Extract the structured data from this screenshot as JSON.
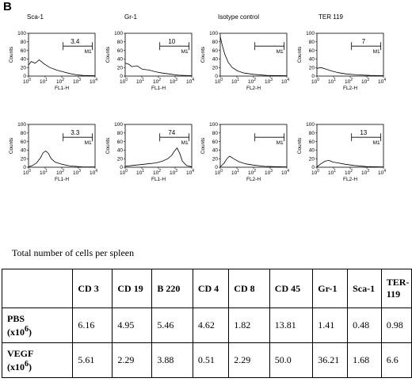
{
  "panel_label": "B",
  "histograms": {
    "columns": [
      "Sca-1",
      "Gr-1",
      "Isotype control",
      "TER 119"
    ],
    "y_label": "Counts",
    "y_ticks": [
      "0",
      "20",
      "40",
      "60",
      "80",
      "100"
    ],
    "x_tick_bases": [
      "10",
      "10",
      "10",
      "10",
      "10"
    ],
    "x_tick_exps": [
      "0",
      "1",
      "2",
      "3",
      "4"
    ],
    "marker_label": "M1",
    "panels": [
      {
        "row": 0,
        "col": 0,
        "xlabel": "FL1-H",
        "percent": "3.4"
      },
      {
        "row": 0,
        "col": 1,
        "xlabel": "FL1-H",
        "percent": "10"
      },
      {
        "row": 0,
        "col": 2,
        "xlabel": "FL2-H",
        "percent": ""
      },
      {
        "row": 0,
        "col": 3,
        "xlabel": "FL2-H",
        "percent": "7"
      },
      {
        "row": 1,
        "col": 0,
        "xlabel": "FL1-H",
        "percent": "3.3"
      },
      {
        "row": 1,
        "col": 1,
        "xlabel": "FL1-H",
        "percent": "74"
      },
      {
        "row": 1,
        "col": 2,
        "xlabel": "FL2-H",
        "percent": ""
      },
      {
        "row": 1,
        "col": 3,
        "xlabel": "FL2-H",
        "percent": "13"
      }
    ]
  },
  "table": {
    "caption": "Total number of cells per spleen",
    "headers": [
      "",
      "CD 3",
      "CD 19",
      "B 220",
      "CD 4",
      "CD 8",
      "CD 45",
      "Gr-1",
      "Sca-1",
      "TER-119"
    ],
    "rows": [
      {
        "label": "PBS",
        "unit_base": "(x10",
        "unit_exp": "6",
        "unit_end": ")",
        "values": [
          "6.16",
          "4.95",
          "5.46",
          "4.62",
          "1.82",
          "13.81",
          "1.41",
          "0.48",
          "0.98"
        ]
      },
      {
        "label": "VEGF",
        "unit_base": "(x10",
        "unit_exp": "6",
        "unit_end": ")",
        "values": [
          "5.61",
          "2.29",
          "3.88",
          "0.51",
          "2.29",
          "50.0",
          "36.21",
          "1.68",
          "6.6"
        ]
      }
    ]
  }
}
